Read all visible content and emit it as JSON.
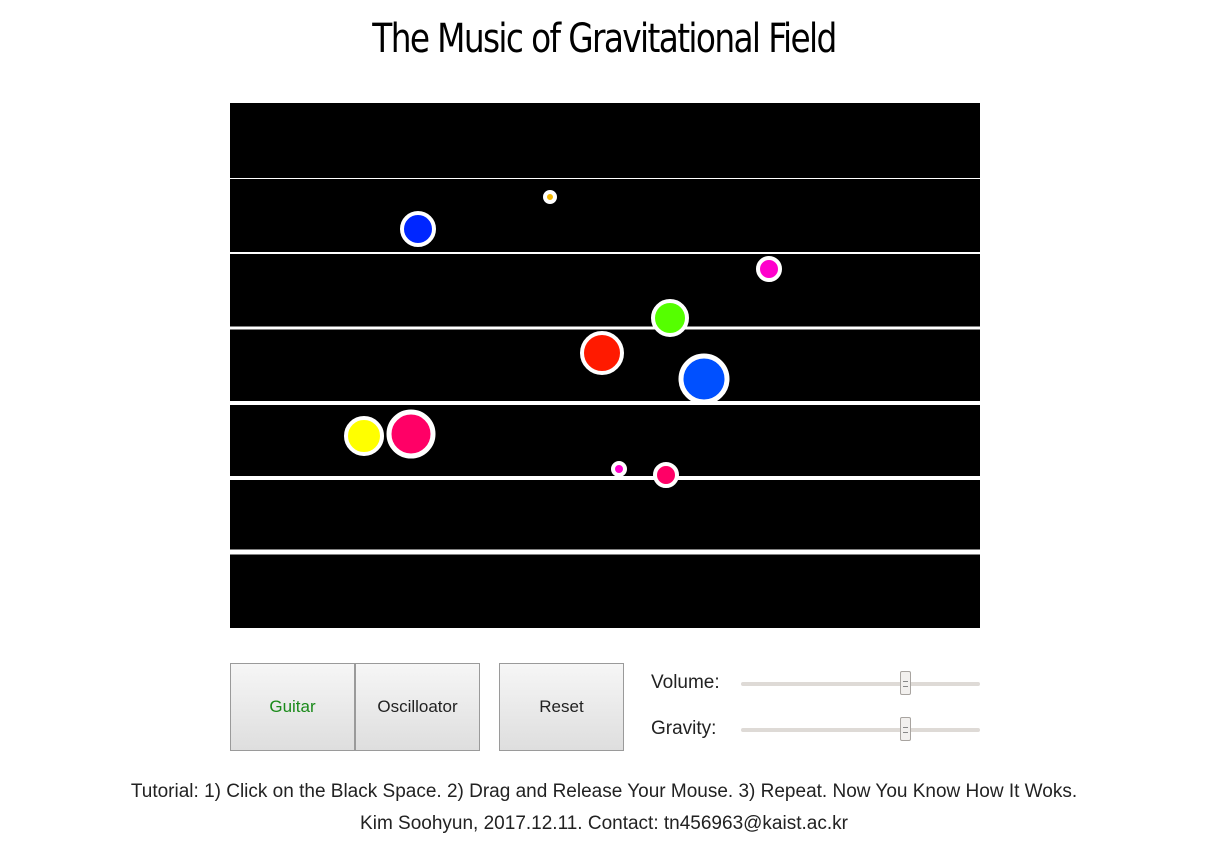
{
  "title": "The Music of Gravitational Field",
  "stage": {
    "background": "#000000",
    "string_color": "#ffffff",
    "ball_outline_color": "#ffffff",
    "balls": [
      {
        "color": "#f5b800"
      },
      {
        "color": "#0026ff"
      },
      {
        "color": "#ff00cc"
      },
      {
        "color": "#55ff00"
      },
      {
        "color": "#ff1a00"
      },
      {
        "color": "#0050ff"
      },
      {
        "color": "#ffff00"
      },
      {
        "color": "#ff0066"
      },
      {
        "color": "#ff00cc"
      },
      {
        "color": "#ff0066"
      }
    ]
  },
  "controls": {
    "guitar_label": "Guitar",
    "guitar_active_color": "#1a8a1a",
    "oscillator_label": "Oscilloator",
    "reset_label": "Reset",
    "volume_label": "Volume:",
    "volume_value": 0.69,
    "gravity_label": "Gravity:",
    "gravity_value": 0.69
  },
  "footer": {
    "tutorial": "Tutorial: 1) Click on the Black Space. 2) Drag and Release Your Mouse. 3) Repeat. Now You Know How It Woks.",
    "credit": "Kim Soohyun, 2017.12.11. Contact: tn456963@kaist.ac.kr"
  }
}
